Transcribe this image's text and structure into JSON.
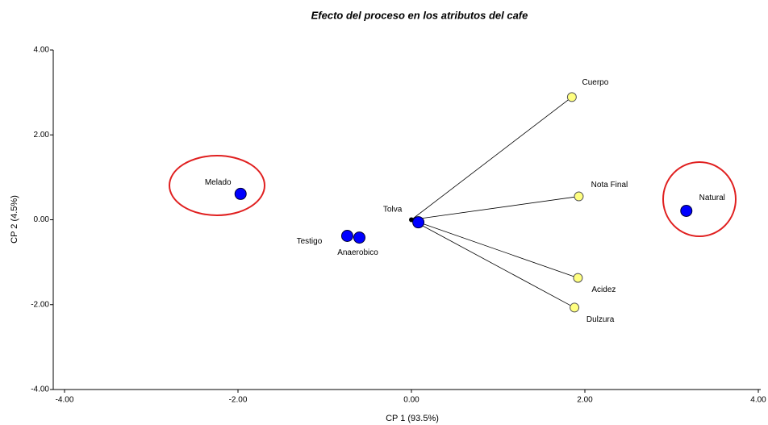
{
  "chart_data": {
    "type": "scatter",
    "title": "Efecto del proceso en los atributos del cafe",
    "xlabel": "CP 1 (93.5%)",
    "ylabel": "CP 2 (4.5%)",
    "xlim": [
      -4,
      4
    ],
    "ylim": [
      -4,
      4
    ],
    "xticks": [
      {
        "value": -4,
        "label": "-4.00"
      },
      {
        "value": -2,
        "label": "-2.00"
      },
      {
        "value": 0,
        "label": "0.00"
      },
      {
        "value": 2,
        "label": "2.00"
      },
      {
        "value": 4,
        "label": "4.00"
      }
    ],
    "yticks": [
      {
        "value": -4,
        "label": "-4.00"
      },
      {
        "value": -2,
        "label": "-2.00"
      },
      {
        "value": 0,
        "label": "0.00"
      },
      {
        "value": 2,
        "label": "2.00"
      },
      {
        "value": 4,
        "label": "4.00"
      }
    ],
    "series": [
      {
        "color": "#0000ff",
        "labels": [
          "Melado",
          "Testigo",
          "Anaerobico",
          "Tolva",
          "Natural"
        ],
        "x": [
          -1.97,
          -0.74,
          -0.6,
          0.08,
          3.17
        ],
        "values": [
          0.61,
          -0.38,
          -0.42,
          -0.06,
          0.21
        ]
      },
      {
        "color": "#ffff80",
        "vectors": true,
        "labels": [
          "Cuerpo",
          "Nota Final",
          "Acidez",
          "Dulzura"
        ],
        "x": [
          1.85,
          1.93,
          1.92,
          1.88
        ],
        "values": [
          2.89,
          0.55,
          -1.37,
          -2.07
        ]
      }
    ]
  }
}
